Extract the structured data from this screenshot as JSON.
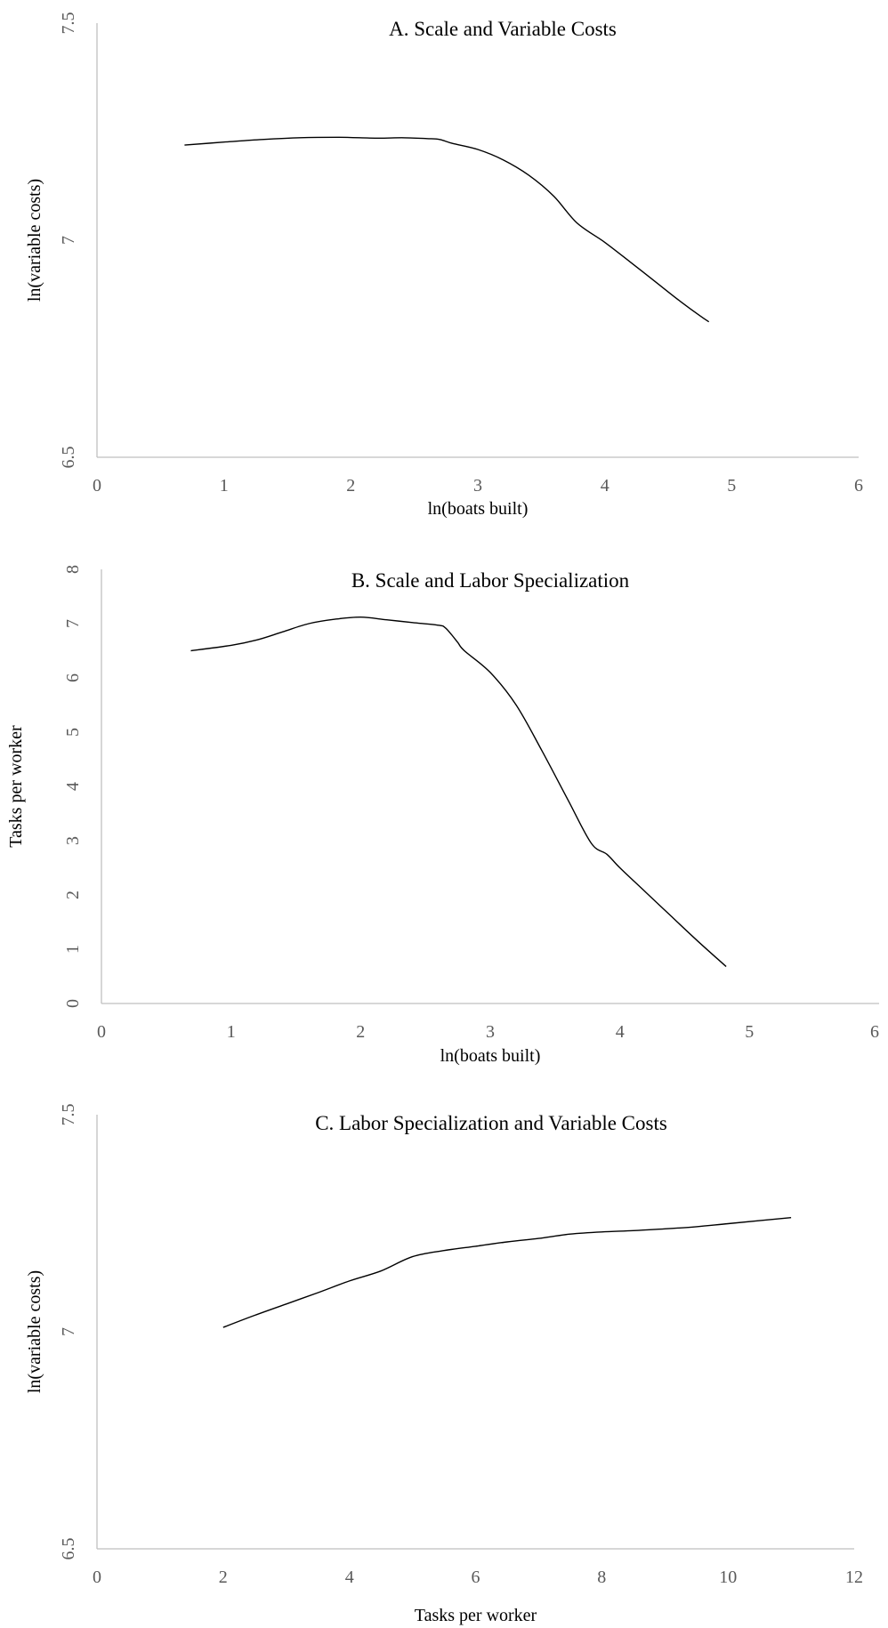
{
  "chart_data": [
    {
      "type": "line",
      "title": "A. Scale and Variable Costs",
      "xlabel": "ln(boats built)",
      "ylabel": "ln(variable costs)",
      "xlim": [
        0,
        6
      ],
      "ylim": [
        6.5,
        7.5
      ],
      "xticks": [
        "0",
        "1",
        "2",
        "3",
        "4",
        "5",
        "6"
      ],
      "yticks": [
        "6.5",
        "7",
        "7.5"
      ],
      "grid": false,
      "series": [
        {
          "x": [
            0.69,
            1.0,
            1.3,
            1.6,
            1.9,
            2.2,
            2.4,
            2.6,
            2.7,
            2.8,
            3.0,
            3.2,
            3.4,
            3.6,
            3.78,
            4.0,
            4.2,
            4.4,
            4.6,
            4.75,
            4.82
          ],
          "y": [
            7.219,
            7.226,
            7.232,
            7.236,
            7.237,
            7.235,
            7.236,
            7.234,
            7.232,
            7.223,
            7.209,
            7.185,
            7.15,
            7.101,
            7.04,
            6.995,
            6.95,
            6.904,
            6.858,
            6.826,
            6.812
          ]
        }
      ]
    },
    {
      "type": "line",
      "title": "B. Scale and Labor Specialization",
      "xlabel": "ln(boats built)",
      "ylabel": "Tasks per worker",
      "xlim": [
        0,
        6
      ],
      "ylim": [
        0,
        8
      ],
      "xticks": [
        "0",
        "1",
        "2",
        "3",
        "4",
        "5",
        "6"
      ],
      "yticks": [
        "0",
        "1",
        "2",
        "3",
        "4",
        "5",
        "6",
        "7",
        "8"
      ],
      "grid": false,
      "series": [
        {
          "x": [
            0.69,
            1.0,
            1.2,
            1.4,
            1.6,
            1.8,
            2.0,
            2.2,
            2.4,
            2.6,
            2.65,
            2.7,
            2.75,
            2.8,
            3.0,
            3.2,
            3.4,
            3.6,
            3.78,
            3.9,
            4.0,
            4.2,
            4.4,
            4.6,
            4.82
          ],
          "y": [
            6.5,
            6.6,
            6.7,
            6.85,
            7.0,
            7.08,
            7.12,
            7.07,
            7.02,
            6.97,
            6.93,
            6.8,
            6.65,
            6.5,
            6.1,
            5.5,
            4.65,
            3.75,
            2.95,
            2.75,
            2.5,
            2.05,
            1.6,
            1.15,
            0.68
          ]
        }
      ]
    },
    {
      "type": "line",
      "title": "C. Labor Specialization and Variable Costs",
      "xlabel": "Tasks per worker",
      "ylabel": "ln(variable costs)",
      "xlim": [
        0,
        12
      ],
      "ylim": [
        6.5,
        7.5
      ],
      "xticks": [
        "0",
        "2",
        "4",
        "6",
        "8",
        "10",
        "12"
      ],
      "yticks": [
        "6.5",
        "7",
        "7.5"
      ],
      "grid": false,
      "series": [
        {
          "x": [
            2.0,
            2.5,
            3.0,
            3.5,
            4.0,
            4.5,
            5.0,
            5.5,
            6.0,
            6.5,
            7.0,
            7.5,
            8.0,
            8.5,
            9.0,
            9.5,
            10.0,
            10.5,
            11.0
          ],
          "y": [
            7.01,
            7.038,
            7.064,
            7.09,
            7.117,
            7.14,
            7.173,
            7.187,
            7.197,
            7.207,
            7.215,
            7.225,
            7.23,
            7.233,
            7.237,
            7.242,
            7.249,
            7.256,
            7.263
          ]
        }
      ]
    }
  ]
}
